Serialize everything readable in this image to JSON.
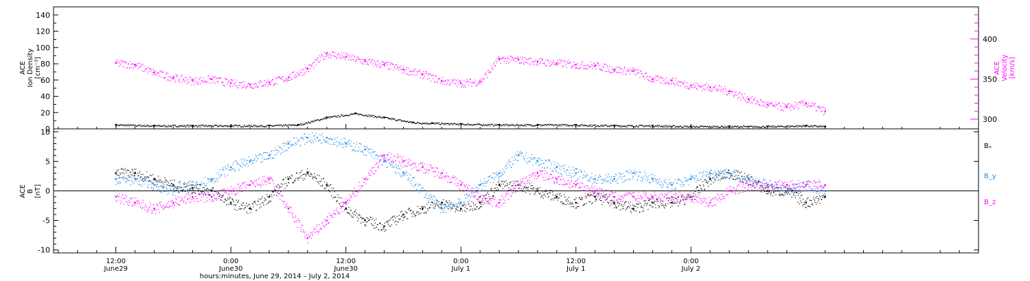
{
  "chart_data": [
    {
      "type": "scatter",
      "panel": "plasma",
      "left_axis": {
        "label_lines": [
          "ACE",
          "Ion Density",
          "[cm⁻³]"
        ],
        "ylim": [
          0,
          150
        ],
        "ticks": [
          0,
          20,
          40,
          60,
          80,
          100,
          120,
          140
        ],
        "color": "#000000"
      },
      "right_axis": {
        "label_lines": [
          "ACE",
          "Velocity",
          "[km/s]"
        ],
        "ylim": [
          288,
          440
        ],
        "ticks": [
          300,
          350,
          400
        ],
        "color": "#ff00ff"
      },
      "series": [
        {
          "axis": "left",
          "color": "#000000",
          "x": [
            0,
            4,
            8,
            12,
            16,
            19,
            22,
            25,
            28,
            31,
            33,
            36,
            40,
            44,
            48,
            52,
            56,
            60,
            64,
            68,
            72,
            74
          ],
          "y": [
            5,
            4,
            4,
            4,
            4,
            5,
            14,
            19,
            14,
            8,
            7,
            6,
            5,
            5,
            5,
            4,
            4,
            3,
            3,
            3,
            4,
            3
          ]
        },
        {
          "axis": "right",
          "color": "#ff00ff",
          "x": [
            0,
            2,
            4,
            6,
            8,
            10,
            12,
            14,
            16,
            18,
            20,
            22,
            24,
            26,
            28,
            30,
            32,
            34,
            36,
            38,
            40,
            42,
            44,
            46,
            48,
            50,
            52,
            54,
            56,
            58,
            60,
            62,
            64,
            66,
            68,
            70,
            72,
            74
          ],
          "y": [
            370,
            368,
            358,
            352,
            348,
            350,
            345,
            343,
            346,
            352,
            363,
            382,
            378,
            372,
            368,
            362,
            356,
            348,
            345,
            347,
            375,
            374,
            372,
            370,
            368,
            367,
            362,
            360,
            350,
            348,
            342,
            340,
            335,
            325,
            318,
            315,
            320,
            310
          ]
        }
      ]
    },
    {
      "type": "scatter",
      "panel": "magnetic-field",
      "ylabel_lines": [
        "ACE",
        "B",
        "[nT]"
      ],
      "ylim": [
        -10.5,
        10.5
      ],
      "ticks": [
        -10,
        -5,
        0,
        5,
        10
      ],
      "zero_line": true,
      "series": [
        {
          "name": "Bₓ",
          "color": "#000000",
          "x": [
            0,
            2,
            4,
            6,
            8,
            10,
            12,
            14,
            16,
            18,
            20,
            22,
            24,
            26,
            28,
            30,
            32,
            34,
            36,
            38,
            40,
            42,
            44,
            46,
            48,
            50,
            52,
            54,
            56,
            58,
            60,
            62,
            64,
            66,
            68,
            70,
            72,
            74
          ],
          "y": [
            3,
            3,
            2,
            1,
            0.5,
            0,
            -2,
            -3,
            -1,
            2,
            3,
            1,
            -3,
            -5,
            -6,
            -4,
            -3,
            -2,
            -3,
            -2,
            1,
            1,
            0,
            -1,
            -2,
            -1,
            -2,
            -3,
            -2,
            -2,
            -1,
            2,
            3,
            2,
            0,
            0,
            -2,
            -1
          ]
        },
        {
          "name": "B_y",
          "color": "#1e88e5",
          "x": [
            0,
            2,
            4,
            6,
            8,
            10,
            12,
            14,
            16,
            18,
            20,
            22,
            24,
            26,
            28,
            30,
            32,
            34,
            36,
            38,
            40,
            42,
            44,
            46,
            48,
            50,
            52,
            54,
            56,
            58,
            60,
            62,
            64,
            66,
            68,
            70,
            72,
            74
          ],
          "y": [
            2,
            2,
            1,
            0,
            1,
            2,
            4,
            5,
            6,
            8,
            9,
            9,
            8,
            7,
            5,
            3,
            0,
            -3,
            -2,
            1,
            3,
            6,
            5,
            4,
            3,
            2,
            2,
            3,
            2,
            1,
            2,
            3,
            3,
            2,
            1,
            0,
            1,
            0
          ]
        },
        {
          "name": "B_z",
          "color": "#ff00ff",
          "x": [
            0,
            2,
            4,
            6,
            8,
            10,
            12,
            14,
            16,
            18,
            20,
            22,
            24,
            26,
            28,
            30,
            32,
            34,
            36,
            38,
            40,
            42,
            44,
            46,
            48,
            50,
            52,
            54,
            56,
            58,
            60,
            62,
            64,
            66,
            68,
            70,
            72,
            74
          ],
          "y": [
            -1,
            -2,
            -3,
            -2,
            -1,
            -1,
            0,
            1,
            2,
            -3,
            -8,
            -5,
            -2,
            2,
            6,
            5,
            4,
            3,
            1,
            -1,
            -2,
            1,
            3,
            2,
            1,
            0,
            -1,
            -1,
            -1,
            -1,
            -1,
            -2,
            0,
            1,
            1,
            1,
            1,
            1
          ]
        }
      ]
    }
  ],
  "time_axis": {
    "xlim": [
      -6.5,
      90
    ],
    "ticks": [
      {
        "hour": 0,
        "line1": "12:00",
        "line2": "June29"
      },
      {
        "hour": 12,
        "line1": "0:00",
        "line2": "June30"
      },
      {
        "hour": 24,
        "line1": "12:00",
        "line2": "June30"
      },
      {
        "hour": 36,
        "line1": "0:00",
        "line2": "July 1"
      },
      {
        "hour": 48,
        "line1": "12:00",
        "line2": "July 1"
      },
      {
        "hour": 60,
        "line1": "0:00",
        "line2": "July 2"
      }
    ],
    "xlabel": "hours:minutes, June 29, 2014 – July  2, 2014"
  }
}
